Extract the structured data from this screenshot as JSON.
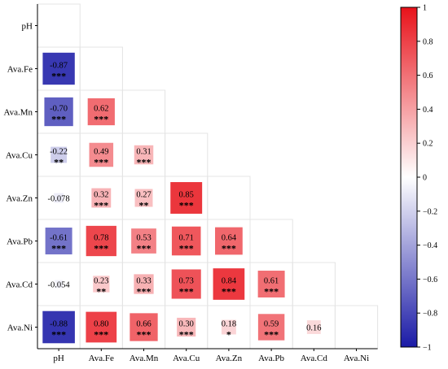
{
  "chart_data": {
    "type": "heatmap",
    "title": "",
    "variables": [
      "pH",
      "Ava.Fe",
      "Ava.Mn",
      "Ava.Cu",
      "Ava.Zn",
      "Ava.Pb",
      "Ava.Cd",
      "Ava.Ni"
    ],
    "correlations": [
      {
        "row": "Ava.Fe",
        "col": "pH",
        "label": "-0.87",
        "value": -0.87,
        "sig": "***"
      },
      {
        "row": "Ava.Mn",
        "col": "pH",
        "label": "-0.70",
        "value": -0.7,
        "sig": "***"
      },
      {
        "row": "Ava.Mn",
        "col": "Ava.Fe",
        "label": "0.62",
        "value": 0.62,
        "sig": "***"
      },
      {
        "row": "Ava.Cu",
        "col": "pH",
        "label": "-0.22",
        "value": -0.22,
        "sig": "**"
      },
      {
        "row": "Ava.Cu",
        "col": "Ava.Fe",
        "label": "0.49",
        "value": 0.49,
        "sig": "***"
      },
      {
        "row": "Ava.Cu",
        "col": "Ava.Mn",
        "label": "0.31",
        "value": 0.31,
        "sig": "***"
      },
      {
        "row": "Ava.Zn",
        "col": "pH",
        "label": "-0.078",
        "value": -0.078,
        "sig": ""
      },
      {
        "row": "Ava.Zn",
        "col": "Ava.Fe",
        "label": "0.32",
        "value": 0.32,
        "sig": "***"
      },
      {
        "row": "Ava.Zn",
        "col": "Ava.Mn",
        "label": "0.27",
        "value": 0.27,
        "sig": "**"
      },
      {
        "row": "Ava.Zn",
        "col": "Ava.Cu",
        "label": "0.85",
        "value": 0.85,
        "sig": "***"
      },
      {
        "row": "Ava.Pb",
        "col": "pH",
        "label": "-0.61",
        "value": -0.61,
        "sig": "***"
      },
      {
        "row": "Ava.Pb",
        "col": "Ava.Fe",
        "label": "0.78",
        "value": 0.78,
        "sig": "***"
      },
      {
        "row": "Ava.Pb",
        "col": "Ava.Mn",
        "label": "0.53",
        "value": 0.53,
        "sig": "***"
      },
      {
        "row": "Ava.Pb",
        "col": "Ava.Cu",
        "label": "0.71",
        "value": 0.71,
        "sig": "***"
      },
      {
        "row": "Ava.Pb",
        "col": "Ava.Zn",
        "label": "0.64",
        "value": 0.64,
        "sig": "***"
      },
      {
        "row": "Ava.Cd",
        "col": "pH",
        "label": "-0.054",
        "value": -0.054,
        "sig": ""
      },
      {
        "row": "Ava.Cd",
        "col": "Ava.Fe",
        "label": "0.23",
        "value": 0.23,
        "sig": "**"
      },
      {
        "row": "Ava.Cd",
        "col": "Ava.Mn",
        "label": "0.33",
        "value": 0.33,
        "sig": "***"
      },
      {
        "row": "Ava.Cd",
        "col": "Ava.Cu",
        "label": "0.73",
        "value": 0.73,
        "sig": "***"
      },
      {
        "row": "Ava.Cd",
        "col": "Ava.Zn",
        "label": "0.84",
        "value": 0.84,
        "sig": "***"
      },
      {
        "row": "Ava.Cd",
        "col": "Ava.Pb",
        "label": "0.61",
        "value": 0.61,
        "sig": "***"
      },
      {
        "row": "Ava.Ni",
        "col": "pH",
        "label": "-0.88",
        "value": -0.88,
        "sig": "***"
      },
      {
        "row": "Ava.Ni",
        "col": "Ava.Fe",
        "label": "0.80",
        "value": 0.8,
        "sig": "***"
      },
      {
        "row": "Ava.Ni",
        "col": "Ava.Mn",
        "label": "0.66",
        "value": 0.66,
        "sig": "***"
      },
      {
        "row": "Ava.Ni",
        "col": "Ava.Cu",
        "label": "0.30",
        "value": 0.3,
        "sig": "***"
      },
      {
        "row": "Ava.Ni",
        "col": "Ava.Zn",
        "label": "0.18",
        "value": 0.18,
        "sig": "*"
      },
      {
        "row": "Ava.Ni",
        "col": "Ava.Pb",
        "label": "0.59",
        "value": 0.59,
        "sig": "***"
      },
      {
        "row": "Ava.Ni",
        "col": "Ava.Cd",
        "label": "0.16",
        "value": 0.16,
        "sig": ""
      }
    ],
    "colorbar": {
      "range": [
        -1,
        1
      ],
      "ticks": [
        "1",
        "0.8",
        "0.6",
        "0.4",
        "0.2",
        "0",
        "−0.2",
        "−0.4",
        "−0.6",
        "−0.8",
        "−1"
      ],
      "tick_values": [
        1,
        0.8,
        0.6,
        0.4,
        0.2,
        0,
        -0.2,
        -0.4,
        -0.6,
        -0.8,
        -1
      ],
      "colors": {
        "negative": "#1a1aa6",
        "zero": "#ffffff",
        "positive": "#e8121a"
      }
    },
    "lower_triangle": true,
    "grid": true,
    "legend": "right"
  }
}
